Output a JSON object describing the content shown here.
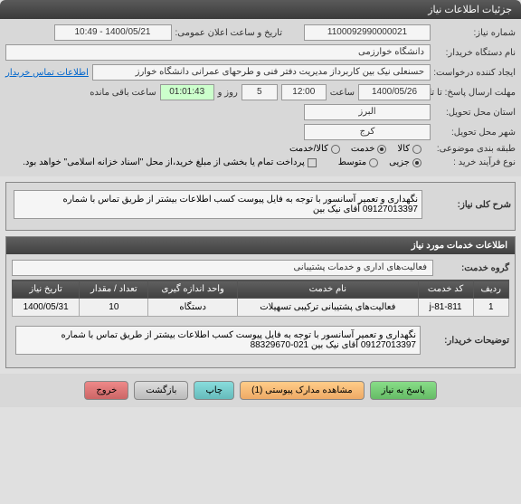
{
  "title_bar": "جزئیات اطلاعات نیاز",
  "fields": {
    "need_number_label": "شماره نیاز:",
    "need_number_value": "1100092990000021",
    "announce_label": "تاریخ و ساعت اعلان عمومی:",
    "announce_value": "1400/05/21 - 10:49",
    "buyer_org_label": "نام دستگاه خریدار:",
    "buyer_org_value": "دانشگاه خوارزمی",
    "creator_label": "ایجاد کننده درخواست:",
    "creator_value": "حسنعلی  نیک بین کاربرداز مدیریت دفتر فنی و طرحهای عمرانی  دانشگاه خوارز",
    "contact_link": "اطلاعات تماس خریدار",
    "deadline_label": "مهلت ارسال پاسخ:  تا تاریخ:",
    "deadline_date": "1400/05/26",
    "time_label": "ساعت",
    "deadline_time": "12:00",
    "days_label": "روز و",
    "days_value": "5",
    "remain_time": "01:01:43",
    "remain_label": "ساعت باقی مانده",
    "delivery_province_label": "استان محل تحویل:",
    "delivery_province_value": "البرز",
    "delivery_city_label": "شهر محل تحویل:",
    "delivery_city_value": "کرج",
    "subject_type_label": "طبقه بندی موضوعی:",
    "radio_goods": "کالا",
    "radio_service": "خدمت",
    "radio_goods_service": "کالا/خدمت",
    "purchase_type_label": "نوع فرآیند خرید :",
    "radio_partial": "جزیی",
    "radio_medium": "متوسط",
    "purchase_note": "پرداخت تمام یا بخشی از مبلغ خرید،از محل \"اسناد خزانه اسلامی\" خواهد بود.",
    "general_desc_label": "شرح کلی نیاز:",
    "general_desc_value": "نگهداری و تعمیر آسانسور با توجه به فایل پیوست کسب اطلاعات بیشتر از طریق تماس با شماره 09127013397 آقای نیک بین"
  },
  "services_header": "اطلاعات خدمات مورد نیاز",
  "service_group_label": "گروه خدمت:",
  "service_group_value": "فعالیت‌های اداری و خدمات پشتیبانی",
  "table": {
    "headers": [
      "ردیف",
      "کد خدمت",
      "نام خدمت",
      "واحد اندازه گیری",
      "تعداد / مقدار",
      "تاریخ نیاز"
    ],
    "rows": [
      [
        "1",
        "j-81-811",
        "فعالیت‌های پشتیبانی ترکیبی تسهیلات",
        "دستگاه",
        "10",
        "1400/05/31"
      ]
    ]
  },
  "buyer_notes_label": "توضیحات خریدار:",
  "buyer_notes_value": "نگهداری و تعمیر آسانسور با توجه به فایل پیوست کسب اطلاعات بیشتر از طریق تماس با شماره 09127013397 آقای نیک بین   021-88329670",
  "buttons": {
    "respond": "پاسخ به نیاز",
    "attachments": "مشاهده مدارک پیوستی (1)",
    "print": "چاپ",
    "back": "بازگشت",
    "exit": "خروج"
  }
}
